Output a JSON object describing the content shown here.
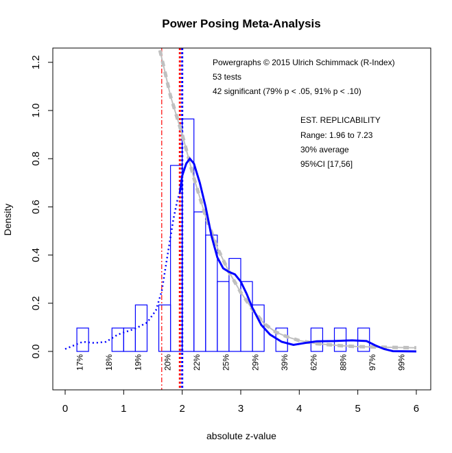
{
  "chart_data": {
    "type": "bar",
    "title": "Power Posing Meta-Analysis",
    "xlabel": "absolute z-value",
    "ylabel": "Density",
    "xlim": [
      0,
      6
    ],
    "ylim": [
      -0.15,
      1.25
    ],
    "x_ticks": [
      "0",
      "1",
      "2",
      "3",
      "4",
      "5",
      "6"
    ],
    "y_ticks": [
      "0.0",
      "0.2",
      "0.4",
      "0.6",
      "0.8",
      "1.0",
      "1.2"
    ],
    "grid": false,
    "histogram": {
      "bin_width": 0.2,
      "bins": [
        {
          "x0": 0.2,
          "density": 0.097
        },
        {
          "x0": 0.8,
          "density": 0.097
        },
        {
          "x0": 1.0,
          "density": 0.097
        },
        {
          "x0": 1.2,
          "density": 0.193
        },
        {
          "x0": 1.6,
          "density": 0.193
        },
        {
          "x0": 1.8,
          "density": 0.772
        },
        {
          "x0": 2.0,
          "density": 0.965
        },
        {
          "x0": 2.2,
          "density": 0.579
        },
        {
          "x0": 2.4,
          "density": 0.483
        },
        {
          "x0": 2.6,
          "density": 0.29
        },
        {
          "x0": 2.8,
          "density": 0.386
        },
        {
          "x0": 3.0,
          "density": 0.29
        },
        {
          "x0": 3.2,
          "density": 0.193
        },
        {
          "x0": 3.6,
          "density": 0.097
        },
        {
          "x0": 4.2,
          "density": 0.097
        },
        {
          "x0": 4.6,
          "density": 0.097
        },
        {
          "x0": 5.0,
          "density": 0.097
        }
      ],
      "color": "#0000ff"
    },
    "density_curve": {
      "color": "#0000ff",
      "points": [
        [
          0,
          0.01
        ],
        [
          0.15,
          0.025
        ],
        [
          0.3,
          0.04
        ],
        [
          0.5,
          0.035
        ],
        [
          0.7,
          0.04
        ],
        [
          0.9,
          0.07
        ],
        [
          1.2,
          0.095
        ],
        [
          1.4,
          0.12
        ],
        [
          1.55,
          0.17
        ],
        [
          1.65,
          0.25
        ],
        [
          1.75,
          0.4
        ],
        [
          1.85,
          0.55
        ],
        [
          1.92,
          0.63
        ],
        [
          1.96,
          0.66
        ],
        [
          2.0,
          0.73
        ],
        [
          2.07,
          0.78
        ],
        [
          2.13,
          0.8
        ],
        [
          2.2,
          0.78
        ],
        [
          2.3,
          0.7
        ],
        [
          2.4,
          0.6
        ],
        [
          2.5,
          0.48
        ],
        [
          2.6,
          0.39
        ],
        [
          2.7,
          0.345
        ],
        [
          2.8,
          0.33
        ],
        [
          2.9,
          0.32
        ],
        [
          3.0,
          0.29
        ],
        [
          3.1,
          0.24
        ],
        [
          3.2,
          0.18
        ],
        [
          3.35,
          0.11
        ],
        [
          3.5,
          0.07
        ],
        [
          3.7,
          0.04
        ],
        [
          3.9,
          0.027
        ],
        [
          4.1,
          0.035
        ],
        [
          4.3,
          0.042
        ],
        [
          4.6,
          0.043
        ],
        [
          4.9,
          0.046
        ],
        [
          5.15,
          0.043
        ],
        [
          5.3,
          0.025
        ],
        [
          5.45,
          0.01
        ],
        [
          5.6,
          0.001
        ],
        [
          6.0,
          0.0
        ]
      ]
    },
    "fitted_curve": {
      "color": "#c0c0c0",
      "points": [
        [
          1.62,
          1.25
        ],
        [
          1.8,
          1.06
        ],
        [
          2.0,
          0.9
        ],
        [
          2.2,
          0.72
        ],
        [
          2.4,
          0.56
        ],
        [
          2.6,
          0.43
        ],
        [
          2.8,
          0.33
        ],
        [
          3.0,
          0.245
        ],
        [
          3.2,
          0.175
        ],
        [
          3.4,
          0.115
        ],
        [
          3.6,
          0.08
        ],
        [
          3.8,
          0.06
        ],
        [
          4.0,
          0.045
        ],
        [
          4.3,
          0.032
        ],
        [
          4.7,
          0.024
        ],
        [
          5.0,
          0.02
        ],
        [
          5.5,
          0.017
        ],
        [
          6.0,
          0.015
        ]
      ]
    },
    "vertical_lines": [
      {
        "x": 1.65,
        "color": "#ff0000",
        "style": "dash-dot"
      },
      {
        "x": 1.96,
        "color": "#ff0000",
        "style": "dotted"
      },
      {
        "x": 2.0,
        "color": "#0000ff",
        "style": "dotted"
      }
    ],
    "power_labels": [
      {
        "x": 0.25,
        "label": "17%"
      },
      {
        "x": 0.75,
        "label": "18%"
      },
      {
        "x": 1.25,
        "label": "19%"
      },
      {
        "x": 1.75,
        "label": "20%"
      },
      {
        "x": 2.25,
        "label": "22%"
      },
      {
        "x": 2.75,
        "label": "25%"
      },
      {
        "x": 3.25,
        "label": "29%"
      },
      {
        "x": 3.75,
        "label": "39%"
      },
      {
        "x": 4.25,
        "label": "62%"
      },
      {
        "x": 4.75,
        "label": "88%"
      },
      {
        "x": 5.25,
        "label": "97%"
      },
      {
        "x": 5.75,
        "label": "99%"
      }
    ],
    "annotations": {
      "credit": "Powergraphs © 2015 Ulrich Schimmack (R-Index)",
      "tests": "53 tests",
      "significant": "42 significant (79% p < .05, 91% p < .10)",
      "rep_title": "EST. REPLICABILITY",
      "rep_range": "Range: 1.96 to 7.23",
      "rep_average": "30% average",
      "rep_ci": "95%CI [17,56]"
    }
  }
}
